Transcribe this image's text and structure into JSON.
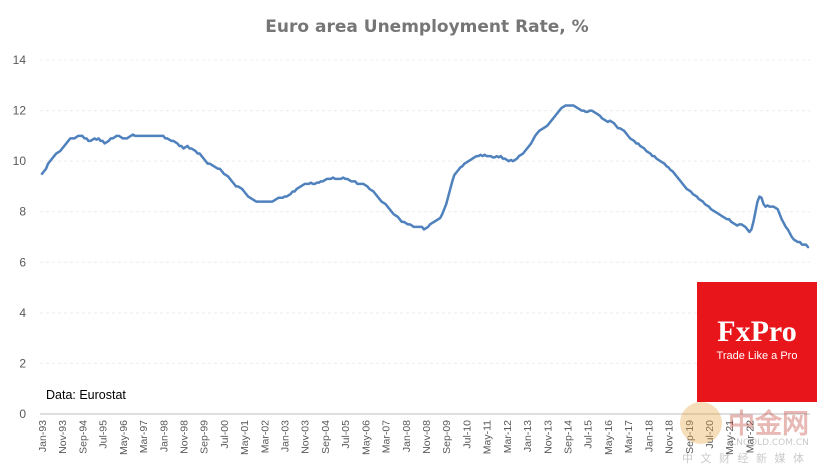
{
  "chart_data": {
    "type": "line",
    "title": "Euro area Unemployment Rate, %",
    "ylim": [
      0,
      14
    ],
    "yticks": [
      "0",
      "2",
      "4",
      "6",
      "8",
      "10",
      "12",
      "14"
    ],
    "grid": true,
    "x_start": "Jan-93",
    "x_tick_labels": [
      "Jan-93",
      "Nov-93",
      "Sep-94",
      "Jul-95",
      "May-96",
      "Mar-97",
      "Jan-98",
      "Nov-98",
      "Sep-99",
      "Jul-00",
      "May-01",
      "Mar-02",
      "Jan-03",
      "Nov-03",
      "Sep-04",
      "Jul-05",
      "May-06",
      "Mar-07",
      "Jan-08",
      "Nov-08",
      "Sep-09",
      "Jul-10",
      "May-11",
      "Mar-12",
      "Jan-13",
      "Nov-13",
      "Sep-14",
      "Jul-15",
      "May-16",
      "Mar-17",
      "Jan-18",
      "Nov-18",
      "Sep-19",
      "Jul-20",
      "May-21",
      "Mar-22"
    ],
    "series": [
      {
        "values": [
          9.5,
          9.6,
          9.7,
          9.9,
          10.0,
          10.1,
          10.2,
          10.3,
          10.35,
          10.4,
          10.5,
          10.6,
          10.7,
          10.8,
          10.9,
          10.9,
          10.9,
          10.95,
          11.0,
          11.0,
          11.0,
          10.9,
          10.9,
          10.8,
          10.8,
          10.85,
          10.9,
          10.85,
          10.9,
          10.8,
          10.8,
          10.7,
          10.75,
          10.8,
          10.9,
          10.9,
          10.95,
          11.0,
          11.0,
          10.95,
          10.9,
          10.9,
          10.9,
          10.95,
          11.0,
          11.05,
          11.0,
          11.0,
          11.0,
          11.0,
          11.0,
          11.0,
          11.0,
          11.0,
          11.0,
          11.0,
          11.0,
          11.0,
          11.0,
          11.0,
          11.0,
          10.9,
          10.9,
          10.85,
          10.8,
          10.8,
          10.75,
          10.7,
          10.6,
          10.6,
          10.5,
          10.55,
          10.6,
          10.5,
          10.5,
          10.45,
          10.4,
          10.3,
          10.3,
          10.2,
          10.1,
          10.0,
          9.9,
          9.9,
          9.85,
          9.8,
          9.75,
          9.7,
          9.7,
          9.6,
          9.5,
          9.45,
          9.4,
          9.3,
          9.2,
          9.1,
          9.0,
          9.0,
          8.95,
          8.9,
          8.8,
          8.7,
          8.6,
          8.55,
          8.5,
          8.45,
          8.4,
          8.4,
          8.4,
          8.4,
          8.4,
          8.4,
          8.4,
          8.4,
          8.4,
          8.45,
          8.5,
          8.55,
          8.55,
          8.55,
          8.6,
          8.6,
          8.65,
          8.7,
          8.8,
          8.8,
          8.9,
          8.95,
          9.0,
          9.05,
          9.1,
          9.1,
          9.1,
          9.15,
          9.1,
          9.1,
          9.15,
          9.15,
          9.2,
          9.2,
          9.25,
          9.3,
          9.3,
          9.3,
          9.35,
          9.3,
          9.3,
          9.3,
          9.3,
          9.35,
          9.3,
          9.3,
          9.25,
          9.2,
          9.2,
          9.2,
          9.1,
          9.1,
          9.1,
          9.1,
          9.05,
          9.0,
          8.9,
          8.85,
          8.8,
          8.7,
          8.6,
          8.5,
          8.4,
          8.35,
          8.3,
          8.2,
          8.1,
          8.0,
          7.9,
          7.85,
          7.8,
          7.7,
          7.6,
          7.6,
          7.55,
          7.5,
          7.5,
          7.45,
          7.4,
          7.4,
          7.4,
          7.4,
          7.4,
          7.3,
          7.35,
          7.4,
          7.5,
          7.55,
          7.6,
          7.65,
          7.7,
          7.75,
          7.9,
          8.1,
          8.3,
          8.6,
          8.9,
          9.2,
          9.45,
          9.55,
          9.65,
          9.75,
          9.8,
          9.9,
          9.95,
          10.0,
          10.05,
          10.1,
          10.15,
          10.2,
          10.2,
          10.25,
          10.2,
          10.25,
          10.2,
          10.2,
          10.2,
          10.15,
          10.15,
          10.2,
          10.15,
          10.2,
          10.1,
          10.1,
          10.05,
          10.0,
          10.05,
          10.0,
          10.05,
          10.1,
          10.2,
          10.25,
          10.3,
          10.4,
          10.5,
          10.6,
          10.7,
          10.85,
          11.0,
          11.1,
          11.2,
          11.25,
          11.3,
          11.35,
          11.4,
          11.5,
          11.6,
          11.7,
          11.8,
          11.9,
          12.0,
          12.1,
          12.15,
          12.2,
          12.2,
          12.2,
          12.2,
          12.2,
          12.15,
          12.1,
          12.05,
          12.0,
          12.0,
          11.95,
          11.95,
          12.0,
          12.0,
          11.95,
          11.9,
          11.85,
          11.8,
          11.7,
          11.65,
          11.6,
          11.55,
          11.6,
          11.55,
          11.5,
          11.4,
          11.3,
          11.3,
          11.25,
          11.2,
          11.1,
          11.0,
          10.9,
          10.85,
          10.8,
          10.7,
          10.7,
          10.6,
          10.55,
          10.5,
          10.4,
          10.35,
          10.3,
          10.2,
          10.2,
          10.1,
          10.05,
          10.0,
          9.95,
          9.9,
          9.8,
          9.75,
          9.65,
          9.6,
          9.5,
          9.4,
          9.3,
          9.2,
          9.1,
          9.0,
          8.9,
          8.85,
          8.8,
          8.7,
          8.65,
          8.6,
          8.5,
          8.45,
          8.4,
          8.3,
          8.25,
          8.2,
          8.1,
          8.05,
          8.0,
          7.95,
          7.9,
          7.85,
          7.8,
          7.75,
          7.7,
          7.7,
          7.6,
          7.55,
          7.5,
          7.45,
          7.5,
          7.5,
          7.45,
          7.4,
          7.3,
          7.2,
          7.3,
          7.6,
          8.0,
          8.4,
          8.6,
          8.55,
          8.3,
          8.2,
          8.25,
          8.2,
          8.2,
          8.2,
          8.15,
          8.1,
          7.9,
          7.7,
          7.55,
          7.4,
          7.3,
          7.15,
          7.0,
          6.9,
          6.85,
          6.8,
          6.8,
          6.7,
          6.7,
          6.7,
          6.6
        ]
      }
    ],
    "annotation": "Data: Eurostat"
  },
  "logo": {
    "brand": "FxPro",
    "slogan": "Trade Like a Pro",
    "color": "#e8161b"
  },
  "watermark": {
    "chinese": "中金网",
    "url": "CNGOLD.COM.CN",
    "subtitle": "中 文 财 经 新 媒 体"
  },
  "colors": {
    "series": "#4f81bd",
    "title": "#767676"
  }
}
